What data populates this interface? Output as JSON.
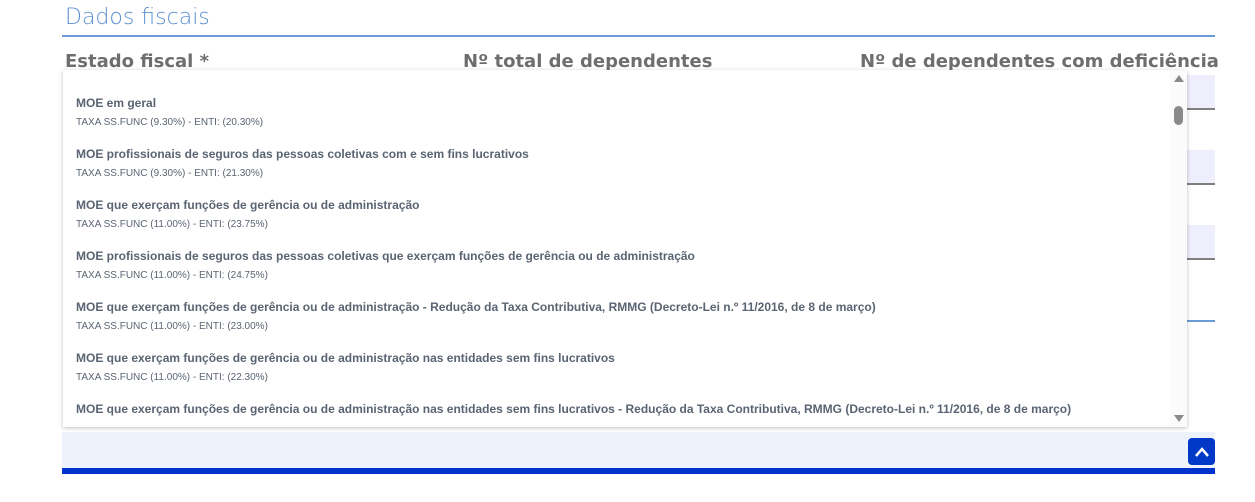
{
  "section": {
    "title": "Dados fiscais"
  },
  "fields": {
    "estado_fiscal_label": "Estado fiscal *",
    "total_dependentes_label": "Nº total de dependentes",
    "dependentes_deficiencia_label": "Nº de dependentes com deficiência"
  },
  "dropdown": {
    "options": [
      {
        "title": "MOE em geral",
        "subtitle": "TAXA SS.FUNC (9.30%) - ENTI: (20.30%)"
      },
      {
        "title": "MOE profissionais de seguros das pessoas coletivas com e sem fins lucrativos",
        "subtitle": "TAXA SS.FUNC (9.30%) - ENTI: (21.30%)"
      },
      {
        "title": "MOE que exerçam funções de gerência ou de administração",
        "subtitle": "TAXA SS.FUNC (11.00%) - ENTI: (23.75%)"
      },
      {
        "title": "MOE profissionais de seguros das pessoas coletivas que exerçam funções de gerência ou de administração",
        "subtitle": "TAXA SS.FUNC (11.00%) - ENTI: (24.75%)"
      },
      {
        "title": "MOE que exerçam funções de gerência ou de administração - Redução da Taxa Contributiva, RMMG (Decreto-Lei n.º 11/2016, de 8 de março)",
        "subtitle": "TAXA SS.FUNC (11.00%) - ENTI: (23.00%)"
      },
      {
        "title": "MOE que exerçam funções de gerência ou de administração nas entidades sem fins lucrativos",
        "subtitle": "TAXA SS.FUNC (11.00%) - ENTI: (22.30%)"
      },
      {
        "title": "MOE que exerçam funções de gerência ou de administração nas entidades sem fins lucrativos - Redução da Taxa Contributiva, RMMG (Decreto-Lei n.º 11/2016, de 8 de março)",
        "subtitle": ""
      }
    ]
  },
  "colors": {
    "accent": "#5b8fd0",
    "bar": "#0033cc",
    "button": "#0038c8"
  },
  "icons": {
    "scroll_top": "chevron-up-icon"
  }
}
